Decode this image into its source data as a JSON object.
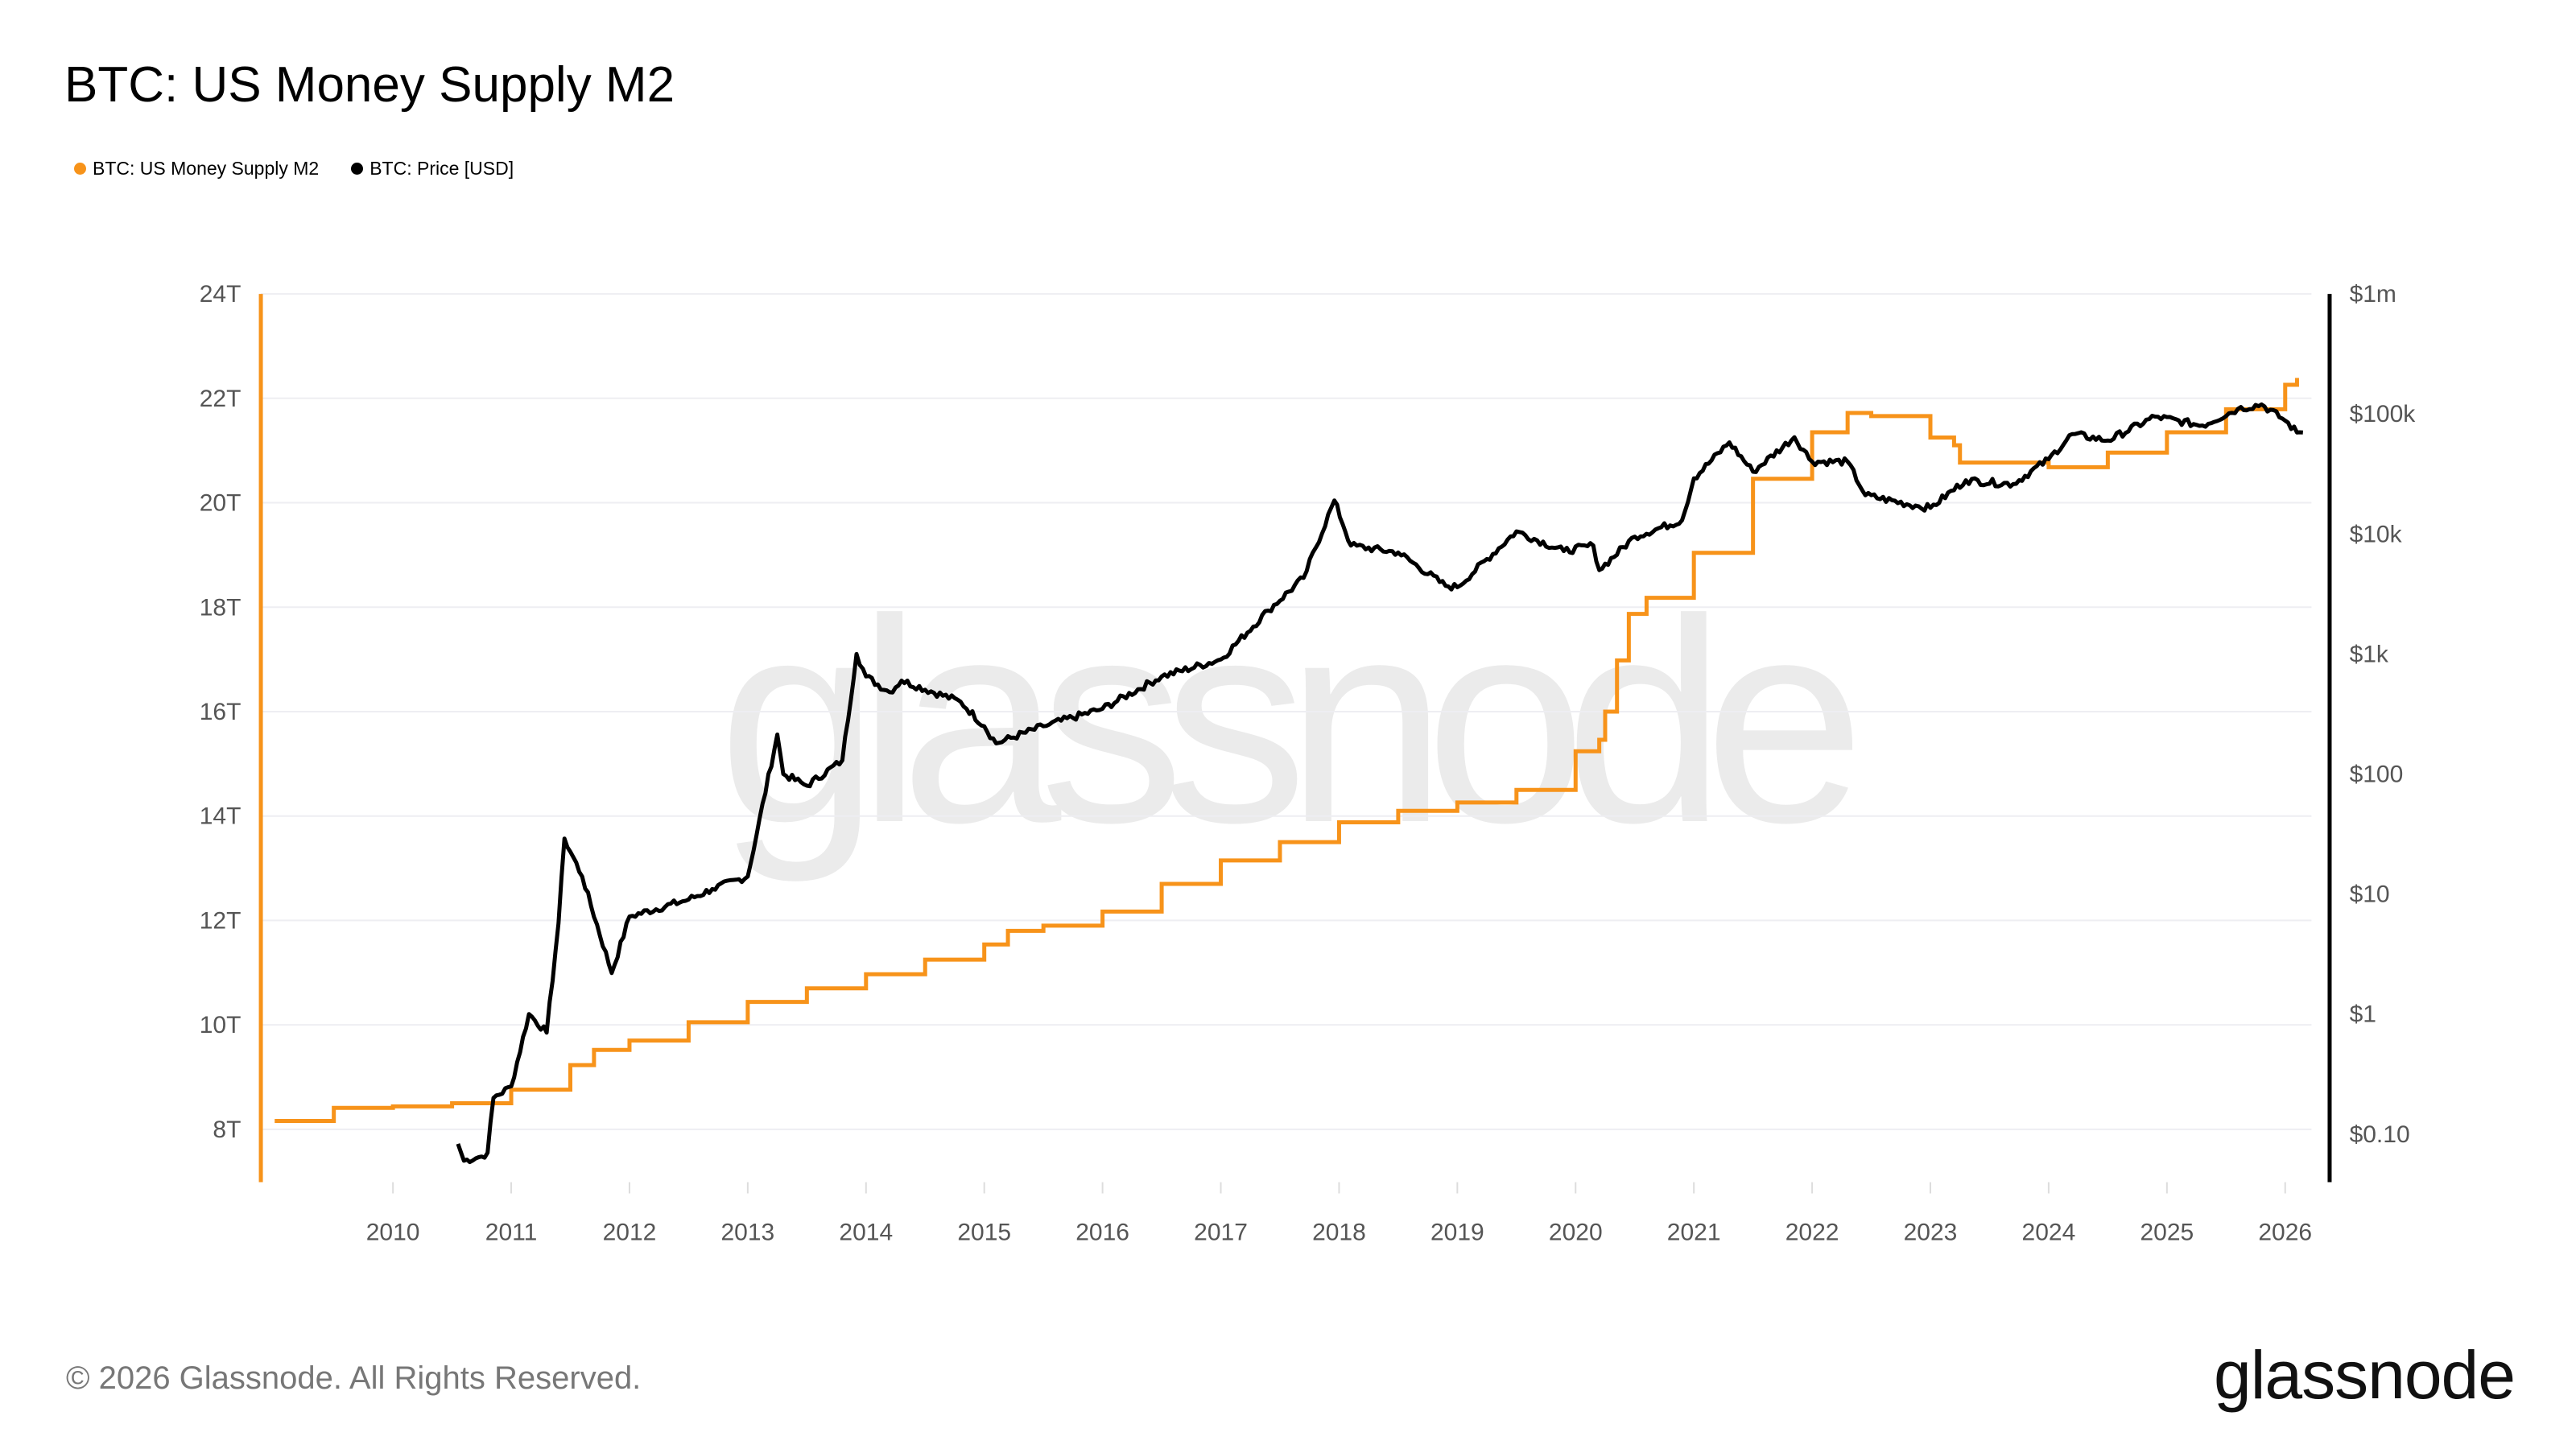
{
  "chart_data": {
    "type": "line",
    "title": "BTC: US Money Supply M2",
    "legend_position": "top-left",
    "grid": true,
    "x_ticks": [
      "2010",
      "2011",
      "2012",
      "2013",
      "2014",
      "2015",
      "2016",
      "2017",
      "2018",
      "2019",
      "2020",
      "2021",
      "2022",
      "2023",
      "2024",
      "2025",
      "2026"
    ],
    "xlim": [
      2008.9,
      2026.25
    ],
    "y_left": {
      "ticks": [
        "8T",
        "10T",
        "12T",
        "14T",
        "16T",
        "18T",
        "20T",
        "22T",
        "24T"
      ],
      "tick_values": [
        8,
        10,
        12,
        14,
        16,
        18,
        20,
        22,
        24
      ],
      "ylim": [
        7,
        24
      ]
    },
    "y_right": {
      "scale": "log",
      "ticks": [
        "$0.10",
        "$1",
        "$10",
        "$100",
        "$1k",
        "$10k",
        "$100k",
        "$1m"
      ],
      "tick_values": [
        0.1,
        1,
        10,
        100,
        1000,
        10000,
        100000,
        1000000
      ],
      "ylim": [
        0.04,
        1000000
      ]
    },
    "series": [
      {
        "name": "BTC: US Money Supply M2",
        "color": "#f7931a",
        "axis": "left",
        "unit": "trillion USD",
        "points": [
          [
            2009.0,
            8.16
          ],
          [
            2009.5,
            8.41
          ],
          [
            2010.0,
            8.44
          ],
          [
            2010.5,
            8.5
          ],
          [
            2011.0,
            8.76
          ],
          [
            2011.5,
            9.23
          ],
          [
            2011.7,
            9.52
          ],
          [
            2012.0,
            9.7
          ],
          [
            2012.5,
            10.05
          ],
          [
            2013.0,
            10.44
          ],
          [
            2013.5,
            10.7
          ],
          [
            2014.0,
            10.97
          ],
          [
            2014.5,
            11.25
          ],
          [
            2015.0,
            11.54
          ],
          [
            2015.2,
            11.8
          ],
          [
            2015.5,
            11.9
          ],
          [
            2016.0,
            12.17
          ],
          [
            2016.5,
            12.7
          ],
          [
            2017.0,
            13.15
          ],
          [
            2017.5,
            13.5
          ],
          [
            2018.0,
            13.88
          ],
          [
            2018.5,
            14.1
          ],
          [
            2019.0,
            14.26
          ],
          [
            2019.5,
            14.5
          ],
          [
            2020.0,
            15.24
          ],
          [
            2020.2,
            15.46
          ],
          [
            2020.25,
            16.0
          ],
          [
            2020.35,
            16.98
          ],
          [
            2020.45,
            17.87
          ],
          [
            2020.6,
            18.18
          ],
          [
            2021.0,
            19.04
          ],
          [
            2021.5,
            20.46
          ],
          [
            2022.0,
            21.35
          ],
          [
            2022.3,
            21.72
          ],
          [
            2022.5,
            21.66
          ],
          [
            2023.0,
            21.25
          ],
          [
            2023.2,
            21.1
          ],
          [
            2023.25,
            20.77
          ],
          [
            2023.5,
            20.77
          ],
          [
            2024.0,
            20.68
          ],
          [
            2024.5,
            20.96
          ],
          [
            2025.0,
            21.35
          ],
          [
            2025.5,
            21.79
          ],
          [
            2026.0,
            22.26
          ],
          [
            2026.1,
            22.39
          ]
        ]
      },
      {
        "name": "BTC: Price [USD]",
        "color": "#000000",
        "axis": "right",
        "unit": "USD",
        "points": [
          [
            2010.55,
            0.083
          ],
          [
            2010.6,
            0.06
          ],
          [
            2010.75,
            0.065
          ],
          [
            2010.8,
            0.07
          ],
          [
            2010.85,
            0.2
          ],
          [
            2011.0,
            0.25
          ],
          [
            2011.15,
            1
          ],
          [
            2011.3,
            0.7
          ],
          [
            2011.4,
            5.7
          ],
          [
            2011.45,
            29
          ],
          [
            2011.6,
            14
          ],
          [
            2011.85,
            2.2
          ],
          [
            2012.0,
            6.5
          ],
          [
            2012.5,
            9
          ],
          [
            2012.7,
            11
          ],
          [
            2013.0,
            14
          ],
          [
            2013.25,
            213
          ],
          [
            2013.3,
            100
          ],
          [
            2013.5,
            80
          ],
          [
            2013.8,
            130
          ],
          [
            2013.92,
            1000
          ],
          [
            2014.0,
            650
          ],
          [
            2014.2,
            480
          ],
          [
            2014.3,
            600
          ],
          [
            2014.8,
            400
          ],
          [
            2015.0,
            250
          ],
          [
            2015.1,
            180
          ],
          [
            2015.5,
            250
          ],
          [
            2016.0,
            350
          ],
          [
            2016.5,
            650
          ],
          [
            2017.0,
            900
          ],
          [
            2017.4,
            2300
          ],
          [
            2017.7,
            4300
          ],
          [
            2017.96,
            19000
          ],
          [
            2018.1,
            8000
          ],
          [
            2018.5,
            7000
          ],
          [
            2018.9,
            3700
          ],
          [
            2019.0,
            3600
          ],
          [
            2019.5,
            10500
          ],
          [
            2019.9,
            7200
          ],
          [
            2020.15,
            8000
          ],
          [
            2020.2,
            5000
          ],
          [
            2020.5,
            9500
          ],
          [
            2020.9,
            13000
          ],
          [
            2021.0,
            29000
          ],
          [
            2021.3,
            58000
          ],
          [
            2021.5,
            33000
          ],
          [
            2021.85,
            64000
          ],
          [
            2022.0,
            40000
          ],
          [
            2022.3,
            40000
          ],
          [
            2022.45,
            21000
          ],
          [
            2022.9,
            17000
          ],
          [
            2023.0,
            16500
          ],
          [
            2023.3,
            28000
          ],
          [
            2023.7,
            26000
          ],
          [
            2024.0,
            42000
          ],
          [
            2024.2,
            68000
          ],
          [
            2024.5,
            60000
          ],
          [
            2024.9,
            95000
          ],
          [
            2025.3,
            80000
          ],
          [
            2025.6,
            110000
          ],
          [
            2025.8,
            120000
          ],
          [
            2026.0,
            88000
          ],
          [
            2026.1,
            70000
          ],
          [
            2026.15,
            70000
          ]
        ]
      }
    ]
  },
  "header": {
    "title": "BTC: US Money Supply M2"
  },
  "legend": [
    "BTC: US Money Supply M2",
    "BTC: Price [USD]"
  ],
  "watermark": "glassnode",
  "footer": {
    "copyright": "© 2026 Glassnode. All Rights Reserved.",
    "logo": "glassnode"
  }
}
